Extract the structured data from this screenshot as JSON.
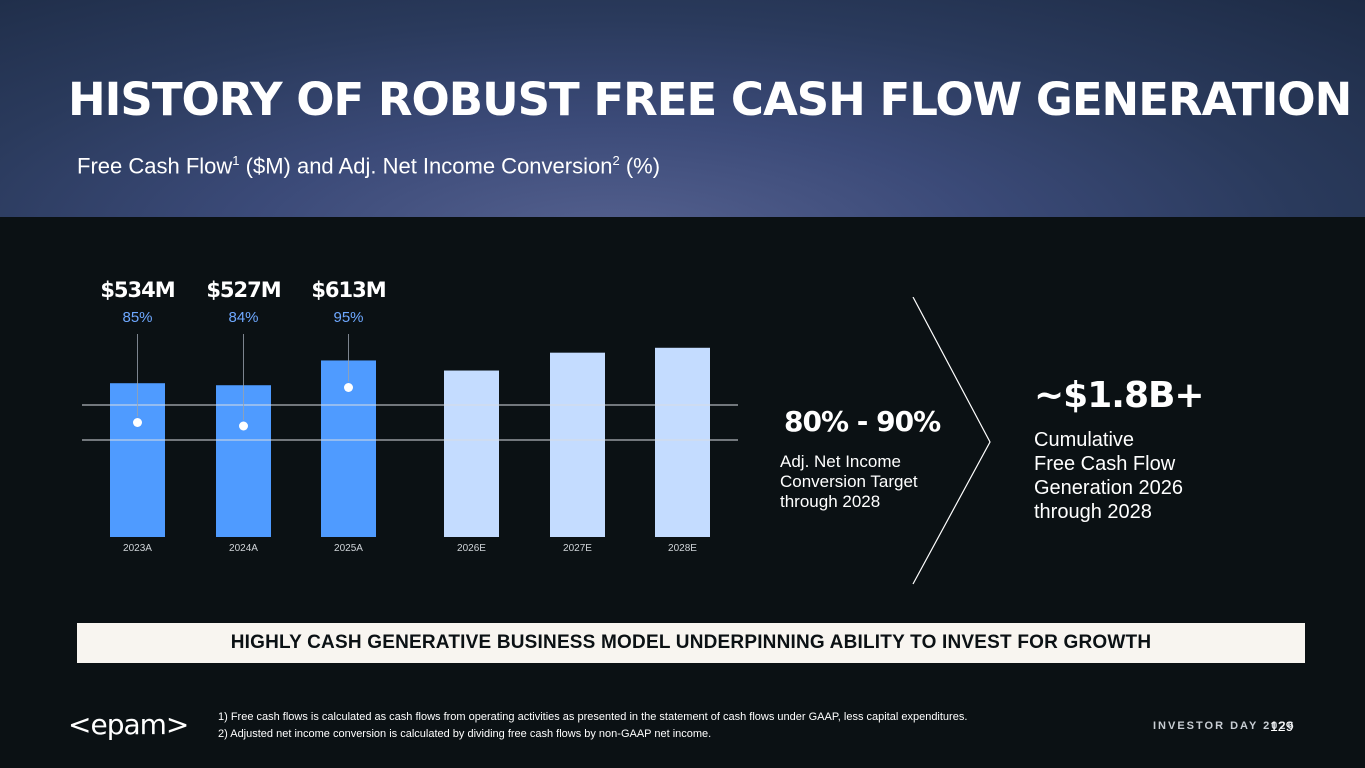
{
  "title": "HISTORY OF ROBUST FREE CASH FLOW GENERATION",
  "subtitle": {
    "before": "Free Cash Flow",
    "sup1": "1",
    "middle": " ($M) and Adj. Net Income Conversion",
    "sup2": "2",
    "after": " (%)"
  },
  "chart_data": {
    "type": "bar",
    "categories": [
      "2023A",
      "2024A",
      "2025A",
      "2026E",
      "2027E",
      "2028E"
    ],
    "values": [
      534,
      527,
      613,
      578,
      640,
      657
    ],
    "value_labels": [
      "$534M",
      "$527M",
      "$613M",
      "",
      "",
      ""
    ],
    "conversion_labels": [
      "85%",
      "84%",
      "95%",
      "",
      "",
      ""
    ],
    "conversion": [
      85,
      84,
      95
    ],
    "target_band": [
      80,
      90
    ],
    "actual_color": "#4f9bff",
    "estimate_color": "#c4dcff",
    "conversion_color": "#6ea8ff"
  },
  "target": {
    "range": "80% - 90%",
    "desc": [
      "Adj. Net Income",
      "Conversion Target",
      "through 2028"
    ]
  },
  "cumulative": {
    "value": "~$1.8B+",
    "desc": [
      "Cumulative",
      "Free Cash Flow",
      "Generation 2026",
      "through 2028"
    ]
  },
  "banner": "HIGHLY CASH GENERATIVE BUSINESS MODEL UNDERPINNING ABILITY TO INVEST FOR GROWTH",
  "logo": "<epam>",
  "footnotes": [
    "1) Free cash flows is calculated as cash flows from operating activities as presented in the statement of cash flows under GAAP, less capital expenditures.",
    "2) Adjusted net income conversion is calculated by dividing free cash flows by non-GAAP net income."
  ],
  "footer": {
    "event": "INVESTOR DAY 2026",
    "page": "129"
  }
}
